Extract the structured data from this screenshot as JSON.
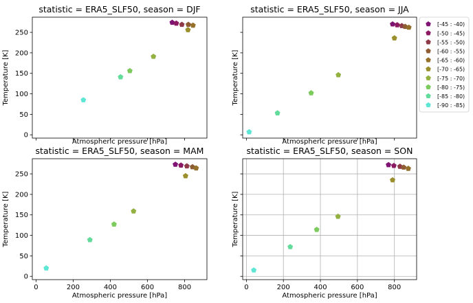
{
  "chart_data": {
    "type": "scatter",
    "xlabel": "Atmospheric pressure [hPa]",
    "ylabel": "Temperature [K]",
    "xlim": [
      -20,
      920
    ],
    "ylim": [
      -8,
      287
    ],
    "xticks": [
      0,
      200,
      400,
      600,
      800
    ],
    "yticks": [
      0,
      50,
      100,
      150,
      200,
      250
    ],
    "sharex": true,
    "sharey": true,
    "marker": "pentagon",
    "legend": {
      "placement": "outside-right of top-right panel",
      "entries": [
        {
          "label": "[-45 : -40)",
          "color": "#7f1474"
        },
        {
          "label": "[-50 : -45)",
          "color": "#8c1a63"
        },
        {
          "label": "[-55 : -50)",
          "color": "#8f3a48"
        },
        {
          "label": "[-60 : -55)",
          "color": "#8e5d33"
        },
        {
          "label": "[-65 : -60)",
          "color": "#94702a"
        },
        {
          "label": "[-70 : -65)",
          "color": "#9a8f2c"
        },
        {
          "label": "[-75 : -70)",
          "color": "#93b141"
        },
        {
          "label": "[-80 : -75)",
          "color": "#7ccb5c"
        },
        {
          "label": "[-85 : -80)",
          "color": "#63db9a"
        },
        {
          "label": "[-90 : -85)",
          "color": "#5ee6d4"
        }
      ]
    },
    "panels": [
      {
        "title": "statistic = ERA5_SLF50, season = DJF",
        "grid": false,
        "series": [
          {
            "name": "[-45 : -40)",
            "x": [
              733
            ],
            "y": [
              274
            ]
          },
          {
            "name": "[-50 : -45)",
            "x": [
              755
            ],
            "y": [
              272
            ]
          },
          {
            "name": "[-55 : -50)",
            "x": [
              785
            ],
            "y": [
              269
            ]
          },
          {
            "name": "[-60 : -55)",
            "x": [
              820
            ],
            "y": [
              269
            ]
          },
          {
            "name": "[-65 : -60)",
            "x": [
              845
            ],
            "y": [
              267
            ]
          },
          {
            "name": "[-70 : -65)",
            "x": [
              818
            ],
            "y": [
              256
            ]
          },
          {
            "name": "[-75 : -70)",
            "x": [
              632
            ],
            "y": [
              191
            ]
          },
          {
            "name": "[-80 : -75)",
            "x": [
              505
            ],
            "y": [
              156
            ]
          },
          {
            "name": "[-85 : -80)",
            "x": [
              455
            ],
            "y": [
              141
            ]
          },
          {
            "name": "[-90 : -85)",
            "x": [
              255
            ],
            "y": [
              85
            ]
          }
        ]
      },
      {
        "title": "statistic = ERA5_SLF50, season = JJA",
        "grid": false,
        "series": [
          {
            "name": "[-45 : -40)",
            "x": [
              790
            ],
            "y": [
              270
            ]
          },
          {
            "name": "[-50 : -45)",
            "x": [
              815
            ],
            "y": [
              268
            ]
          },
          {
            "name": "[-55 : -50)",
            "x": [
              840
            ],
            "y": [
              266
            ]
          },
          {
            "name": "[-60 : -55)",
            "x": [
              858
            ],
            "y": [
              264
            ]
          },
          {
            "name": "[-65 : -60)",
            "x": [
              878
            ],
            "y": [
              262
            ]
          },
          {
            "name": "[-70 : -65)",
            "x": [
              800
            ],
            "y": [
              236
            ]
          },
          {
            "name": "[-75 : -70)",
            "x": [
              497
            ],
            "y": [
              146
            ]
          },
          {
            "name": "[-80 : -75)",
            "x": [
              350
            ],
            "y": [
              102
            ]
          },
          {
            "name": "[-85 : -80)",
            "x": [
              168
            ],
            "y": [
              53
            ]
          },
          {
            "name": "[-90 : -85)",
            "x": [
              15
            ],
            "y": [
              7
            ]
          }
        ]
      },
      {
        "title": "statistic = ERA5_SLF50, season = MAM",
        "grid": false,
        "series": [
          {
            "name": "[-45 : -40)",
            "x": [
              750
            ],
            "y": [
              273
            ]
          },
          {
            "name": "[-50 : -45)",
            "x": [
              780
            ],
            "y": [
              271
            ]
          },
          {
            "name": "[-55 : -50)",
            "x": [
              812
            ],
            "y": [
              269
            ]
          },
          {
            "name": "[-60 : -55)",
            "x": [
              842
            ],
            "y": [
              267
            ]
          },
          {
            "name": "[-65 : -60)",
            "x": [
              862
            ],
            "y": [
              264
            ]
          },
          {
            "name": "[-70 : -65)",
            "x": [
              805
            ],
            "y": [
              245
            ]
          },
          {
            "name": "[-75 : -70)",
            "x": [
              525
            ],
            "y": [
              159
            ]
          },
          {
            "name": "[-80 : -75)",
            "x": [
              420
            ],
            "y": [
              127
            ]
          },
          {
            "name": "[-85 : -80)",
            "x": [
              290
            ],
            "y": [
              89
            ]
          },
          {
            "name": "[-90 : -85)",
            "x": [
              55
            ],
            "y": [
              20
            ]
          }
        ]
      },
      {
        "title": "statistic = ERA5_SLF50, season = SON",
        "grid": true,
        "series": [
          {
            "name": "[-45 : -40)",
            "x": [
              768
            ],
            "y": [
              272
            ]
          },
          {
            "name": "[-50 : -45)",
            "x": [
              797
            ],
            "y": [
              270
            ]
          },
          {
            "name": "[-55 : -50)",
            "x": [
              830
            ],
            "y": [
              268
            ]
          },
          {
            "name": "[-60 : -55)",
            "x": [
              850
            ],
            "y": [
              266
            ]
          },
          {
            "name": "[-65 : -60)",
            "x": [
              875
            ],
            "y": [
              263
            ]
          },
          {
            "name": "[-70 : -65)",
            "x": [
              790
            ],
            "y": [
              235
            ]
          },
          {
            "name": "[-75 : -70)",
            "x": [
              495
            ],
            "y": [
              146
            ]
          },
          {
            "name": "[-80 : -75)",
            "x": [
              380
            ],
            "y": [
              114
            ]
          },
          {
            "name": "[-85 : -80)",
            "x": [
              237
            ],
            "y": [
              72
            ]
          },
          {
            "name": "[-90 : -85)",
            "x": [
              40
            ],
            "y": [
              15
            ]
          }
        ]
      }
    ]
  }
}
